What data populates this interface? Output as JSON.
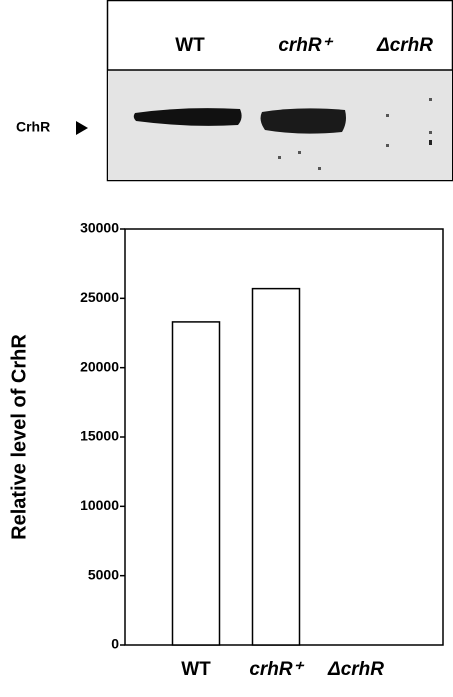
{
  "blot": {
    "lanes": [
      "WT",
      "crhR⁺",
      "ΔcrhR"
    ],
    "band_label": "CrhR"
  },
  "chart_data": {
    "type": "bar",
    "ylabel": "Relative level of CrhR",
    "categories": [
      "WT",
      "crhR⁺",
      "ΔcrhR"
    ],
    "values": [
      23300,
      25700,
      0
    ],
    "color": "#ffffff",
    "ylim": [
      0,
      30000
    ],
    "yticks": [
      0,
      5000,
      10000,
      15000,
      20000,
      25000,
      30000
    ],
    "grid": false
  }
}
